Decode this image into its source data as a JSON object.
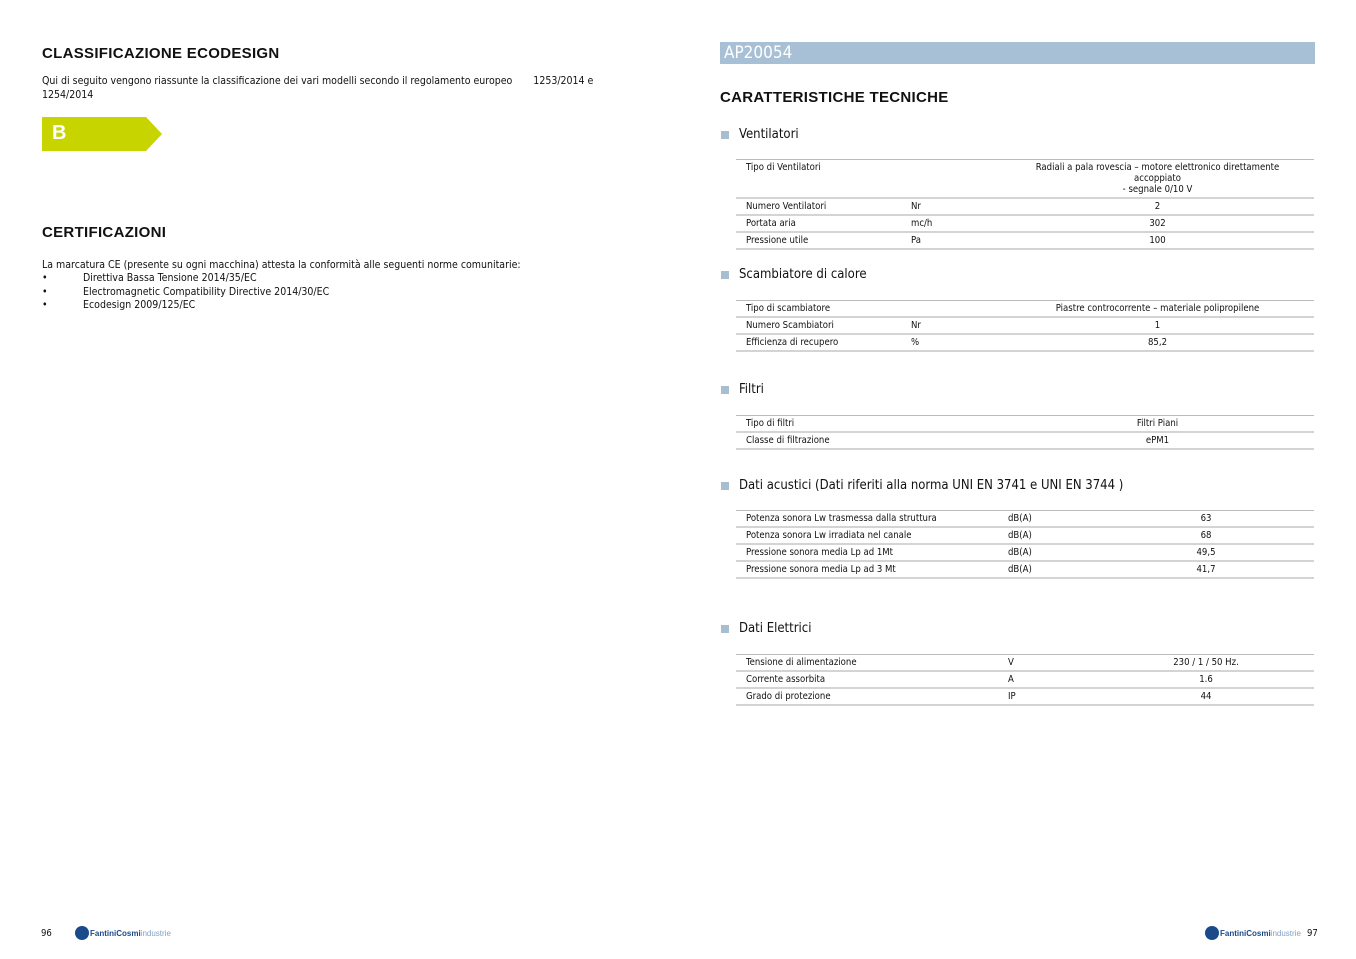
{
  "left": {
    "title": "CLASSIFICAZIONE ECODESIGN",
    "intro_line1": "Qui di seguito vengono riassunte la classificazione dei vari modelli secondo il regolamento europeo       1253/2014 e",
    "intro_line2": "1254/2014",
    "energy_class": "B",
    "energy_class_color": "#c8d400",
    "cert_title": "CERTIFICAZIONI",
    "cert_intro": "La marcatura CE (presente su ogni macchina) attesta la conformità alle seguenti norme comunitarie:",
    "cert_items": [
      "Direttiva Bassa Tensione 2014/35/EC",
      "Electromagnetic Compatibility Directive 2014/30/EC",
      "Ecodesign 2009/125/EC"
    ],
    "page_number": "96"
  },
  "right": {
    "model": "AP20054",
    "title": "CARATTERISTICHE TECNICHE",
    "page_number": "97",
    "sections": [
      {
        "title": "Ventilatori",
        "rows": [
          [
            "Tipo di Ventilatori",
            "",
            "Radiali a pala rovescia – motore elettronico direttamente accoppiato",
            "- segnale   0/10 V"
          ],
          [
            "Numero Ventilatori",
            "Nr",
            "2"
          ],
          [
            "Portata aria",
            "mc/h",
            "302"
          ],
          [
            "Pressione utile",
            "Pa",
            "100"
          ]
        ]
      },
      {
        "title": "Scambiatore di calore",
        "rows": [
          [
            "Tipo di scambiatore",
            "",
            "Piastre controcorrente – materiale polipropilene"
          ],
          [
            "Numero Scambiatori",
            "Nr",
            "1"
          ],
          [
            "Efficienza di recupero",
            "%",
            "85,2"
          ]
        ]
      },
      {
        "title": "Filtri",
        "rows": [
          [
            "Tipo di filtri",
            "",
            "Filtri Piani"
          ],
          [
            "Classe di filtrazione",
            "",
            "ePM1"
          ]
        ]
      },
      {
        "title": "Dati acustici (Dati riferiti alla norma UNI EN  3741 e UNI EN 3744 )",
        "rows": [
          [
            "Potenza sonora Lw trasmessa dalla struttura",
            "dB(A)",
            "63"
          ],
          [
            "Potenza sonora Lw irradiata nel canale",
            "dB(A)",
            "68"
          ],
          [
            "Pressione sonora media Lp ad 1Mt",
            "dB(A)",
            "49,5"
          ],
          [
            "Pressione sonora media Lp ad 3 Mt",
            "dB(A)",
            "41,7"
          ]
        ]
      },
      {
        "title": "Dati Elettrici",
        "rows": [
          [
            "Tensione di alimentazione",
            "V",
            "230 / 1 / 50 Hz."
          ],
          [
            "Corrente assorbita",
            "A",
            "1.6"
          ],
          [
            "Grado di protezione",
            "IP",
            "44"
          ]
        ]
      }
    ]
  },
  "logo": {
    "brand": "FantiniCosmi",
    "suffix": "industrie"
  }
}
